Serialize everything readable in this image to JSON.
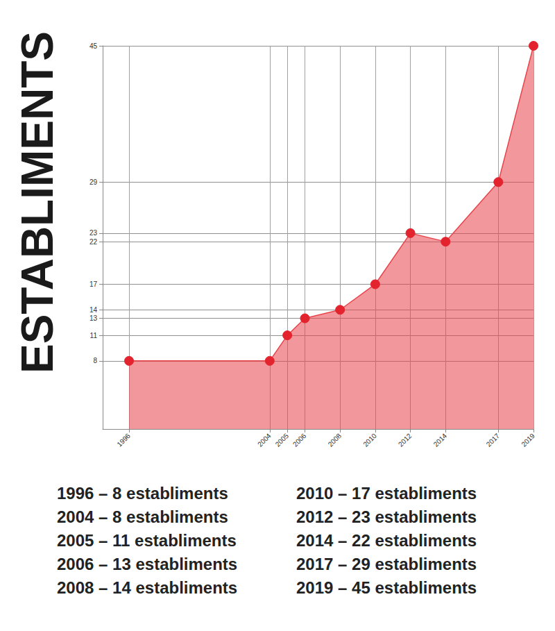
{
  "chart_data": {
    "type": "area",
    "title": "ESTABLIMENTS",
    "x": [
      1996,
      2004,
      2005,
      2006,
      2008,
      2010,
      2012,
      2014,
      2017,
      2019
    ],
    "values": [
      8,
      8,
      11,
      13,
      14,
      17,
      23,
      22,
      29,
      45
    ],
    "color": "#e8434b",
    "marker": "circle",
    "xlim": [
      1994.5,
      2019
    ],
    "xticks": [
      1996,
      2004,
      2005,
      2006,
      2008,
      2010,
      2012,
      2014,
      2017,
      2019
    ],
    "ylim": [
      0,
      45
    ],
    "yticks": [
      8,
      11,
      13,
      14,
      17,
      22,
      23,
      29,
      45
    ],
    "grid": true,
    "annotations": [
      "1996 – 8 establiments",
      "2004 – 8 establiments",
      "2005 – 11 establiments",
      "2006 – 13 establiments",
      "2008 – 14 establiments",
      "2010 – 17 establiments",
      "2012 – 23 establiments",
      "2014 – 22 establiments",
      "2017 – 29 establiments",
      "2019 – 45 establiments"
    ]
  }
}
